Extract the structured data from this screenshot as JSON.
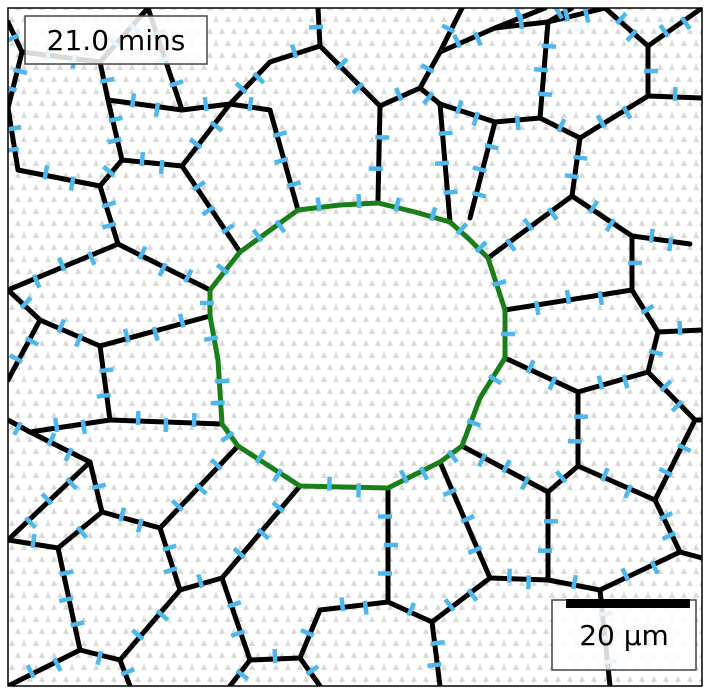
{
  "time_label": "21.0 mins",
  "scale_bar_label": "20 μm",
  "colors": {
    "membrane": "#000000",
    "wound_edge": "#1a7f1a",
    "marker": "#4db8ee",
    "lattice": "#d9d9d9",
    "background": "#ffffff"
  }
}
